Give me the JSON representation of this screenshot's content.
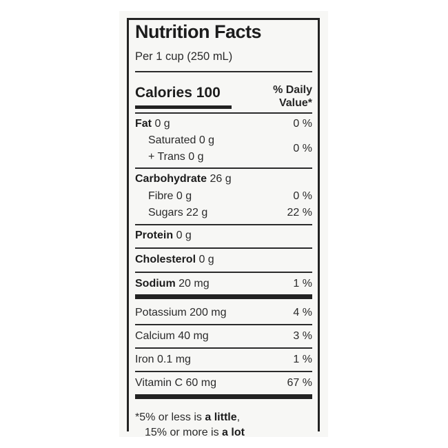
{
  "label": {
    "title": "Nutrition Facts",
    "serving": "Per 1 cup (250 mL)",
    "calories": "Calories 100",
    "dv_line1": "% Daily",
    "dv_line2": "Value*",
    "rows": [
      {
        "name": "Fat",
        "amount": " 0 g",
        "pct": "0 %"
      },
      {
        "name": "Saturated 0 g"
      },
      {
        "name": "+ Trans 0 g",
        "pct": "0 %"
      },
      {
        "name": "Carbohydrate",
        "amount": " 26 g"
      },
      {
        "name": "Fibre 0 g",
        "pct": "0 %"
      },
      {
        "name": "Sugars 22 g",
        "pct": "22 %"
      },
      {
        "name": "Protein",
        "amount": " 0 g"
      },
      {
        "name": "Cholesterol",
        "amount": " 0 g"
      },
      {
        "name": "Sodium",
        "amount": " 20 mg",
        "pct": "1 %"
      },
      {
        "name": "Potassium 200 mg",
        "pct": "4 %"
      },
      {
        "name": "Calcium 40 mg",
        "pct": "3 %"
      },
      {
        "name": "Iron 0.1 mg",
        "pct": "1 %"
      },
      {
        "name": "Vitamin C 60 mg",
        "pct": "67 %"
      }
    ],
    "footnote": {
      "line1_a": "*5% or less is ",
      "line1_b": "a little",
      "line1_c": ",",
      "line2_a": "15% or more is ",
      "line2_b": "a lot"
    }
  }
}
